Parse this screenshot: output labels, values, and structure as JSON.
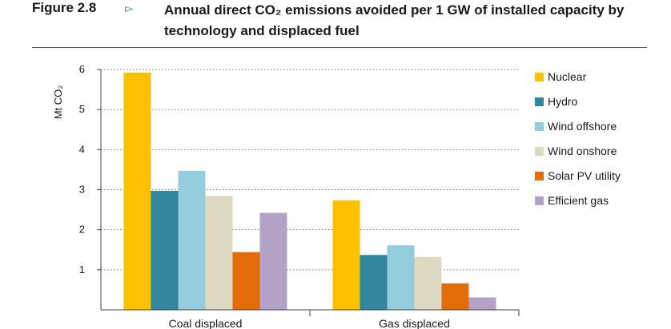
{
  "figure": {
    "label": "Figure 2.8",
    "marker": "▻",
    "title": "Annual direct CO₂ emissions avoided per 1 GW of installed capacity by technology and displaced fuel"
  },
  "chart_data": {
    "type": "bar",
    "ylabel": "Mt CO₂",
    "xlabel": "",
    "ylim": [
      0,
      6
    ],
    "yticks": [
      "1",
      "2",
      "3",
      "4",
      "5",
      "6"
    ],
    "grid": "horizontal-dotted",
    "legend_position": "right",
    "categories": [
      "Coal displaced",
      "Gas displaced"
    ],
    "series": [
      {
        "name": "Nuclear",
        "color": "#FFC000",
        "values": [
          5.92,
          2.73
        ]
      },
      {
        "name": "Hydro",
        "color": "#31859C",
        "values": [
          2.97,
          1.37
        ]
      },
      {
        "name": "Wind offshore",
        "color": "#93CDDD",
        "values": [
          3.47,
          1.61
        ]
      },
      {
        "name": "Wind onshore",
        "color": "#DDD9C3",
        "values": [
          2.84,
          1.32
        ]
      },
      {
        "name": "Solar PV utility",
        "color": "#E36C09",
        "values": [
          1.44,
          0.66
        ]
      },
      {
        "name": "Efficient gas",
        "color": "#B3A2C7",
        "values": [
          2.42,
          0.31
        ]
      }
    ]
  }
}
